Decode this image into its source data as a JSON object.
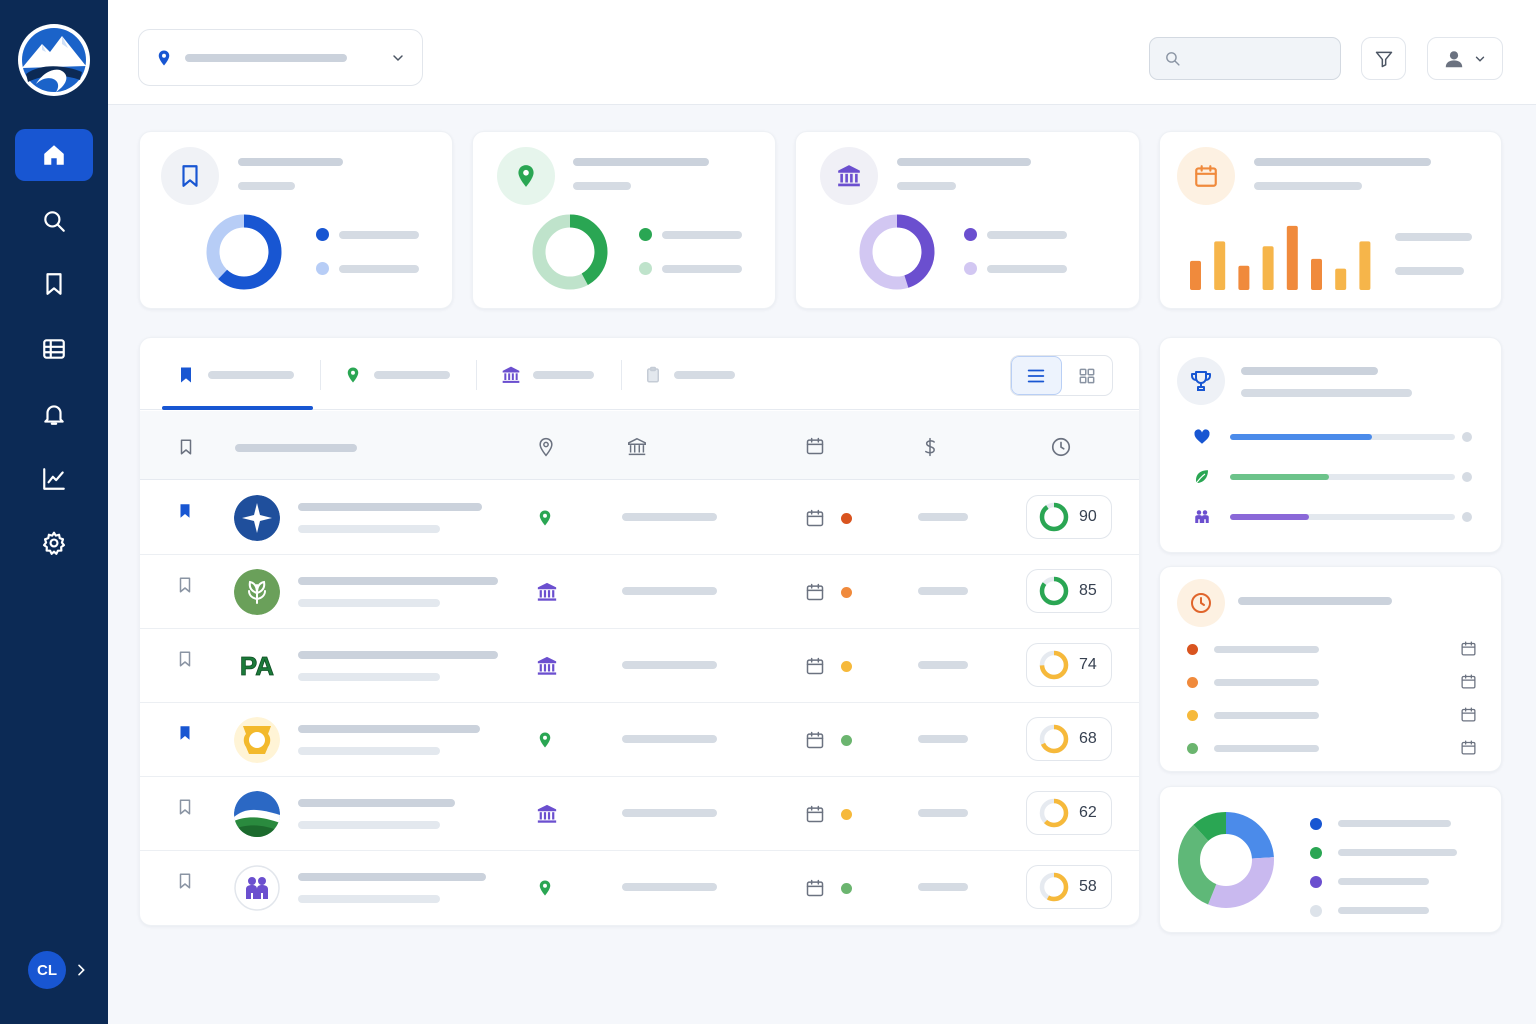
{
  "app": {
    "user_initials": "CL"
  },
  "search": {
    "placeholder": "",
    "value": ""
  },
  "sidebar": {
    "items": [
      {
        "name": "home-icon",
        "active": true
      },
      {
        "name": "search-icon"
      },
      {
        "name": "bookmark-icon"
      },
      {
        "name": "table-icon"
      },
      {
        "name": "bell-icon"
      },
      {
        "name": "chart-line-icon"
      },
      {
        "name": "gear-icon"
      }
    ]
  },
  "stats": [
    {
      "icon": "bookmark-icon",
      "share": 0.62,
      "color": "#1856d2",
      "light": "#b7cdf6"
    },
    {
      "icon": "map-pin-icon",
      "share": 0.42,
      "color": "#2aa653",
      "light": "#bfe3cb"
    },
    {
      "icon": "bank-icon",
      "share": 0.45,
      "color": "#6b4fcf",
      "light": "#d2c7f2"
    }
  ],
  "trend": {
    "icon": "calendar-icon",
    "values": [
      30,
      50,
      25,
      45,
      66,
      32,
      22,
      50
    ],
    "colors": [
      "#f08a3c",
      "#f6b54a",
      "#f08a3c",
      "#f6b54a",
      "#f08a3c",
      "#f08a3c",
      "#f6b54a",
      "#f6b54a"
    ]
  },
  "tabs": [
    {
      "icon": "bookmark-icon",
      "active": true
    },
    {
      "icon": "map-pin-icon"
    },
    {
      "icon": "bank-icon"
    },
    {
      "icon": "clipboard-icon"
    }
  ],
  "columns": [
    "bookmark-icon",
    "name",
    "map-pin-icon",
    "bank-icon",
    "calendar-icon",
    "dollar-icon",
    "clock-icon"
  ],
  "rows": [
    {
      "bookmarked": true,
      "logo": "compass-star",
      "type": "map-pin-icon",
      "status": "#d9541f",
      "score": 90,
      "score_color": "#2aa653"
    },
    {
      "bookmarked": false,
      "logo": "leaf-seal",
      "type": "bank-icon",
      "status": "#f08a3c",
      "score": 85,
      "score_color": "#2aa653"
    },
    {
      "bookmarked": false,
      "logo": "pa-seal",
      "type": "bank-icon",
      "status": "#f6b93b",
      "score": 74,
      "score_color": "#f6b93b"
    },
    {
      "bookmarked": true,
      "logo": "keystone-seal",
      "type": "map-pin-icon",
      "status": "#6bb56f",
      "score": 68,
      "score_color": "#f6b93b"
    },
    {
      "bookmarked": false,
      "logo": "landscape-seal",
      "type": "bank-icon",
      "status": "#f6b93b",
      "score": 62,
      "score_color": "#f6b93b"
    },
    {
      "bookmarked": false,
      "logo": "family-seal",
      "type": "map-pin-icon",
      "status": "#6bb56f",
      "score": 58,
      "score_color": "#f6b93b"
    }
  ],
  "leaderboard": {
    "icon": "trophy-icon",
    "items": [
      {
        "icon": "heart-icon",
        "value": 0.63,
        "color": "#4b8bea"
      },
      {
        "icon": "leaf-icon",
        "value": 0.44,
        "color": "#6cc38a"
      },
      {
        "icon": "people-icon",
        "value": 0.35,
        "color": "#8a68d8"
      }
    ]
  },
  "deadlines": {
    "icon": "clock-icon",
    "items": [
      {
        "color": "#d9541f"
      },
      {
        "color": "#f08a3c"
      },
      {
        "color": "#f6b93b"
      },
      {
        "color": "#6bb56f"
      }
    ]
  },
  "distribution": {
    "slices": [
      {
        "value": 0.24,
        "color": "#4b8bea"
      },
      {
        "value": 0.32,
        "color": "#c9b9ef"
      },
      {
        "value": 0.32,
        "color": "#5fb878"
      },
      {
        "value": 0.12,
        "color": "#2aa653"
      }
    ],
    "legend": [
      "#1856d2",
      "#2aa653",
      "#6b4fcf",
      "#dde3ea"
    ]
  }
}
